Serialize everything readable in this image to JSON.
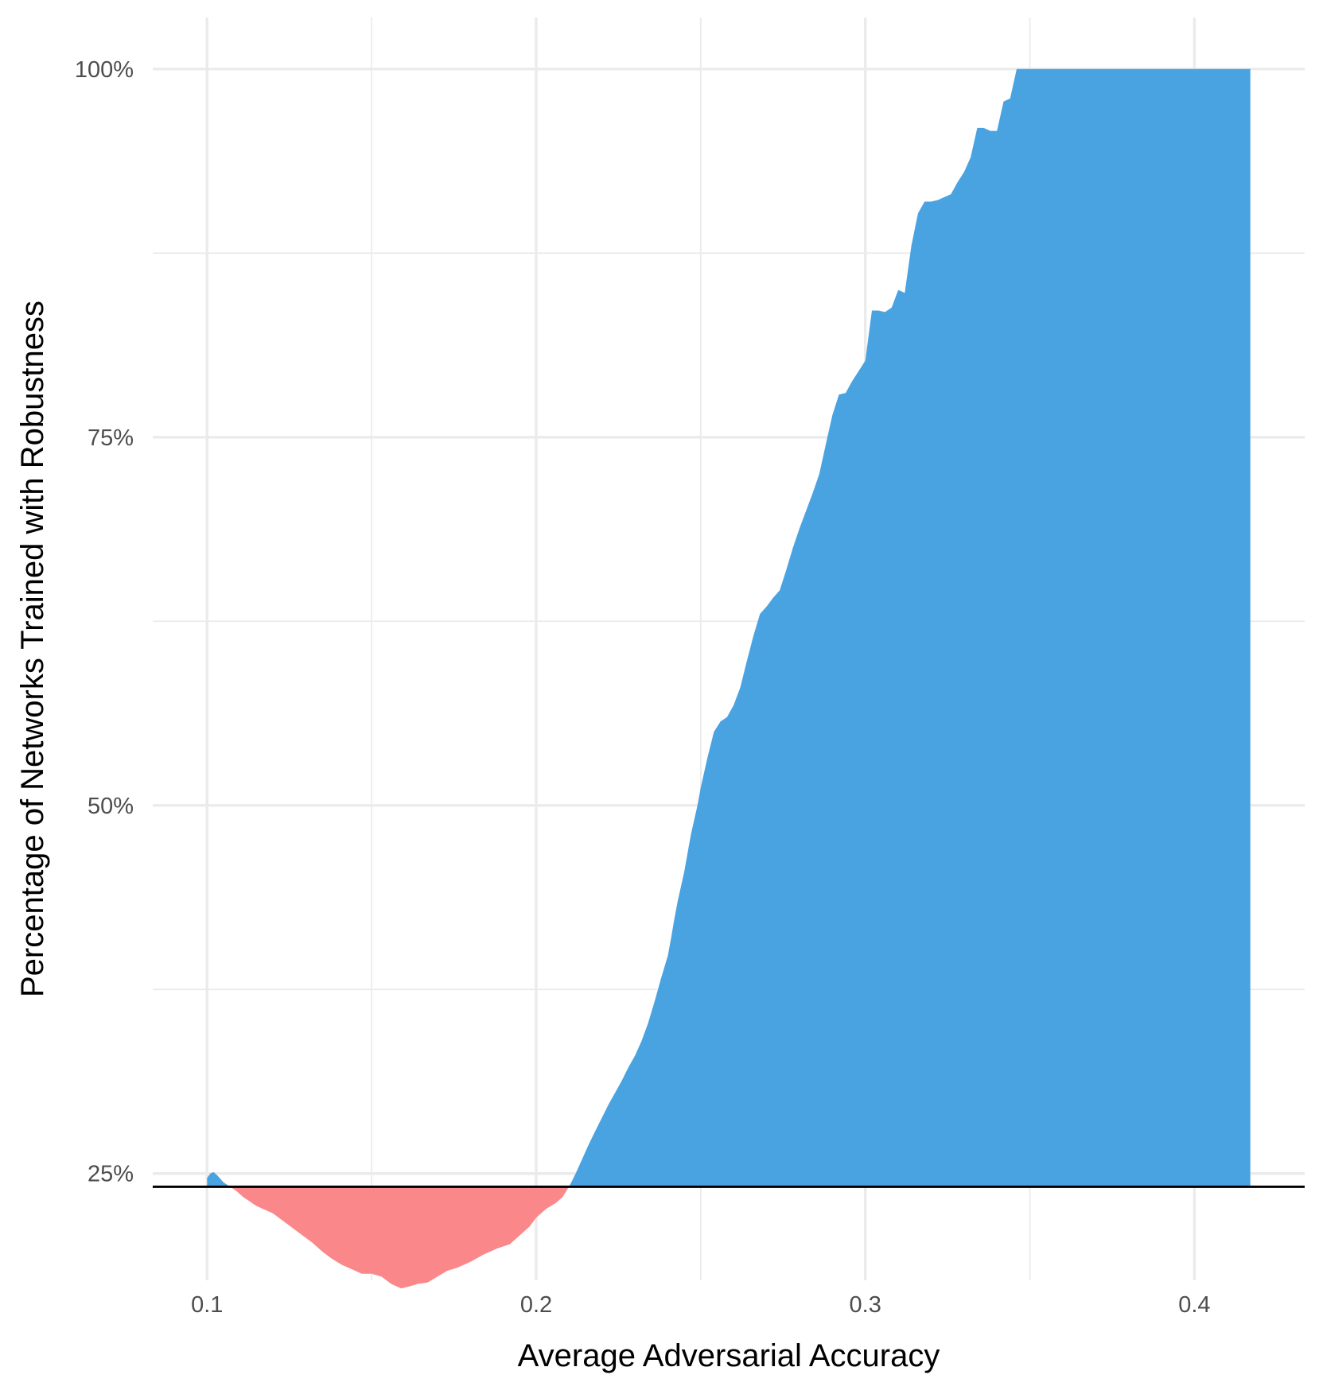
{
  "chart_data": {
    "type": "area",
    "title": "",
    "xlabel": "Average Adversarial Accuracy",
    "ylabel": "Percentage of Networks Trained with Robustness",
    "xlim": [
      0.0835,
      0.4335
    ],
    "ylim": [
      0.1775,
      1.035
    ],
    "x_ticks": [
      0.1,
      0.2,
      0.3,
      0.4
    ],
    "x_tick_labels": [
      "0.1",
      "0.2",
      "0.3",
      "0.4"
    ],
    "y_ticks": [
      0.25,
      0.5,
      0.75,
      1.0
    ],
    "y_tick_labels": [
      "25%",
      "50%",
      "75%",
      "100%"
    ],
    "grid": true,
    "baseline": 0.241,
    "colors": {
      "above": "#4aa3e1",
      "below": "#fa888a",
      "baseline": "#000000"
    },
    "series": [
      {
        "x": [
          0.1,
          0.101,
          0.102,
          0.103,
          0.105,
          0.107,
          0.109,
          0.111,
          0.113,
          0.115,
          0.117,
          0.12,
          0.123,
          0.126,
          0.129,
          0.132,
          0.135,
          0.138,
          0.141,
          0.144,
          0.147,
          0.15,
          0.153,
          0.156,
          0.159,
          0.161,
          0.164,
          0.167,
          0.17,
          0.173,
          0.176,
          0.18,
          0.184,
          0.188,
          0.192,
          0.195,
          0.198,
          0.2,
          0.203,
          0.206,
          0.208,
          0.21,
          0.212,
          0.214,
          0.216,
          0.218,
          0.22,
          0.222,
          0.224,
          0.226,
          0.228,
          0.23,
          0.232,
          0.234,
          0.236,
          0.238,
          0.24,
          0.241,
          0.242,
          0.243,
          0.245,
          0.247,
          0.249,
          0.25,
          0.252,
          0.254,
          0.256,
          0.258,
          0.26,
          0.262,
          0.264,
          0.266,
          0.268,
          0.27,
          0.272,
          0.274,
          0.276,
          0.278,
          0.28,
          0.282,
          0.284,
          0.286,
          0.288,
          0.29,
          0.292,
          0.294,
          0.296,
          0.298,
          0.3,
          0.302,
          0.304,
          0.306,
          0.308,
          0.31,
          0.312,
          0.314,
          0.316,
          0.318,
          0.32,
          0.322,
          0.324,
          0.326,
          0.328,
          0.33,
          0.332,
          0.334,
          0.336,
          0.338,
          0.34,
          0.342,
          0.344,
          0.346,
          0.35,
          0.36,
          0.37,
          0.38,
          0.39,
          0.4,
          0.41,
          0.417
        ],
        "y": [
          0.247,
          0.25,
          0.251,
          0.249,
          0.244,
          0.241,
          0.238,
          0.234,
          0.231,
          0.228,
          0.226,
          0.223,
          0.218,
          0.213,
          0.208,
          0.203,
          0.197,
          0.192,
          0.188,
          0.185,
          0.182,
          0.182,
          0.18,
          0.175,
          0.172,
          0.173,
          0.175,
          0.176,
          0.18,
          0.184,
          0.186,
          0.19,
          0.195,
          0.199,
          0.202,
          0.208,
          0.214,
          0.22,
          0.226,
          0.23,
          0.234,
          0.241,
          0.25,
          0.26,
          0.27,
          0.279,
          0.288,
          0.297,
          0.305,
          0.313,
          0.322,
          0.33,
          0.34,
          0.352,
          0.367,
          0.383,
          0.398,
          0.41,
          0.423,
          0.435,
          0.455,
          0.48,
          0.5,
          0.512,
          0.532,
          0.55,
          0.557,
          0.56,
          0.568,
          0.58,
          0.598,
          0.615,
          0.63,
          0.635,
          0.641,
          0.646,
          0.66,
          0.675,
          0.688,
          0.7,
          0.712,
          0.725,
          0.745,
          0.765,
          0.779,
          0.78,
          0.788,
          0.795,
          0.802,
          0.836,
          0.836,
          0.835,
          0.838,
          0.85,
          0.848,
          0.88,
          0.902,
          0.91,
          0.91,
          0.911,
          0.913,
          0.915,
          0.923,
          0.93,
          0.94,
          0.96,
          0.96,
          0.958,
          0.958,
          0.978,
          0.98,
          1.0,
          1.0,
          1.0,
          1.0,
          1.0,
          1.0,
          1.0,
          1.0,
          1.0
        ]
      }
    ]
  }
}
